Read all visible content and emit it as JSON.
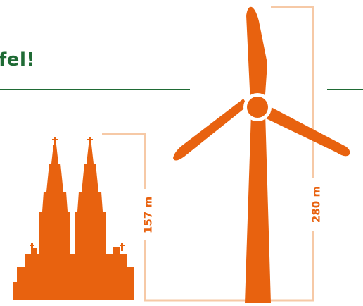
{
  "headline": {
    "text": "fel!"
  },
  "heights": {
    "cathedral_label": "157 m",
    "turbine_label": "280 m"
  },
  "colors": {
    "accent_orange": "#e8620f",
    "guide_peach": "#f6c9a6",
    "headline_green": "#1f6b35"
  }
}
